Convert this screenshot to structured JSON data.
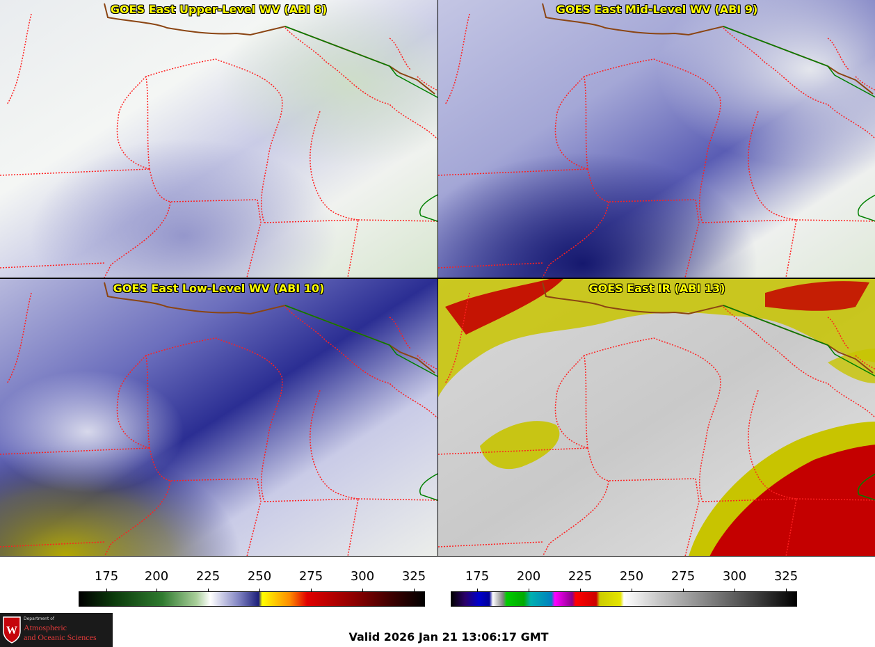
{
  "panels": {
    "upper_wv": {
      "title": "GOES East Upper-Level WV (ABI 8)"
    },
    "mid_wv": {
      "title": "GOES East Mid-Level WV (ABI 9)"
    },
    "low_wv": {
      "title": "GOES East Low-Level WV (ABI 10)"
    },
    "ir": {
      "title": "GOES East IR (ABI 13)"
    }
  },
  "colorbars": {
    "wv": {
      "ticks": [
        "175",
        "200",
        "225",
        "250",
        "275",
        "300",
        "325"
      ],
      "range": [
        163,
        330
      ]
    },
    "ir": {
      "ticks": [
        "175",
        "200",
        "225",
        "250",
        "275",
        "300",
        "325"
      ],
      "range": [
        163,
        330
      ]
    }
  },
  "footer": {
    "valid_time": "Valid 2026 Jan 21 13:06:17 GMT",
    "logo": {
      "line1": "Department of",
      "line2": "Atmospheric",
      "line3": "and Oceanic Sciences"
    }
  },
  "colors": {
    "state_border": "#ff2020",
    "international_border": "#008000",
    "coastline": "#8b4513",
    "title_text": "#ffff00"
  }
}
